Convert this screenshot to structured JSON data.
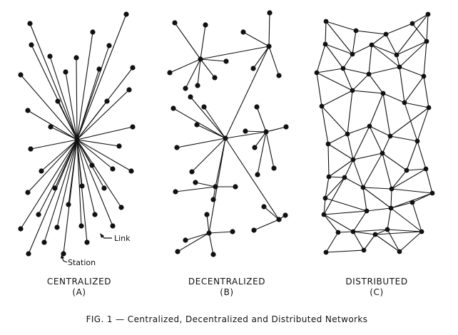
{
  "style": {
    "ink": "#111111",
    "paper": "#ffffff"
  },
  "panels": [
    {
      "title": "CENTRALIZED",
      "letter": "(A)"
    },
    {
      "title": "DECENTRALIZED",
      "letter": "(B)"
    },
    {
      "title": "DISTRIBUTED",
      "letter": "(C)"
    }
  ],
  "annotations": {
    "link": "Link",
    "station": "Station"
  },
  "caption": "FIG. 1 — Centralized, Decentralized and Distributed Networks"
}
